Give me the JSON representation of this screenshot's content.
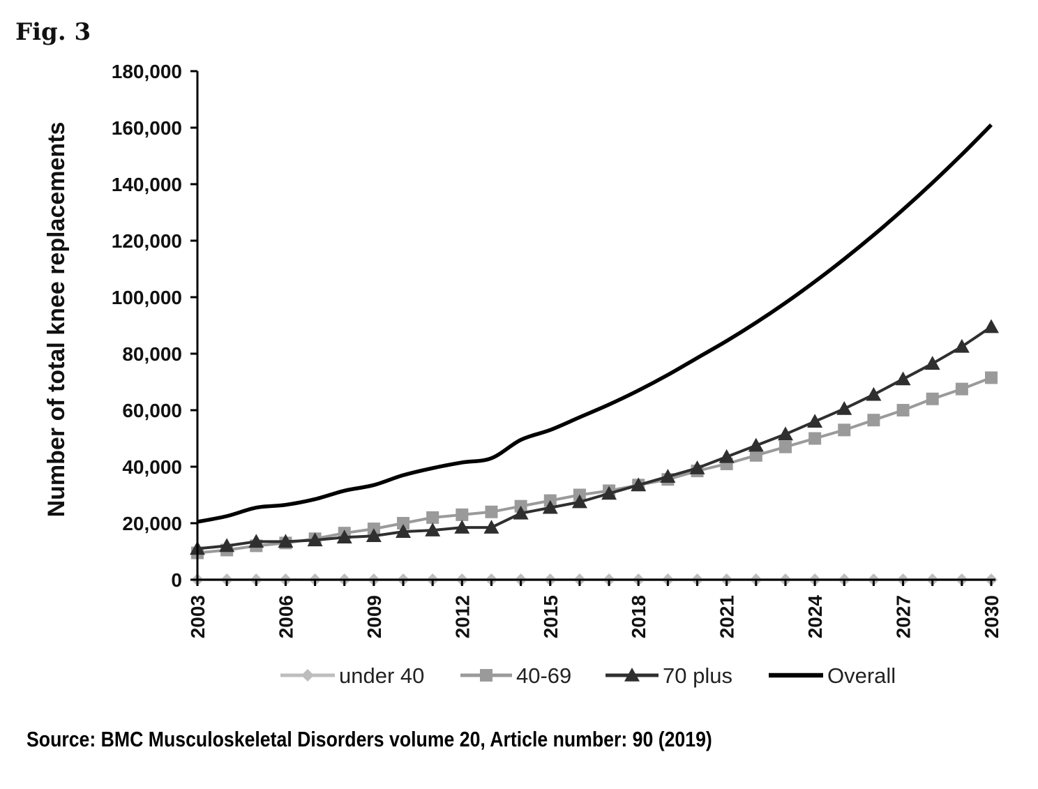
{
  "figure": {
    "label": "Fig. 3",
    "source": "Source: BMC Musculoskeletal Disorders volume 20, Article number: 90 (2019)"
  },
  "colors": {
    "under40": "#bdbdbd",
    "age40_69": "#9a9a9a",
    "plus70": "#2f2f2f",
    "overall": "#000000",
    "axis": "#000000"
  },
  "chart_data": {
    "type": "line",
    "title": "",
    "xlabel": "",
    "ylabel": "Number of total knee replacements",
    "x": [
      2003,
      2004,
      2005,
      2006,
      2007,
      2008,
      2009,
      2010,
      2011,
      2012,
      2013,
      2014,
      2015,
      2016,
      2017,
      2018,
      2019,
      2020,
      2021,
      2022,
      2023,
      2024,
      2025,
      2026,
      2027,
      2028,
      2029,
      2030
    ],
    "xticks": [
      "2003",
      "2006",
      "2009",
      "2012",
      "2015",
      "2018",
      "2021",
      "2024",
      "2027",
      "2030"
    ],
    "yticks": [
      "0",
      "20,000",
      "40,000",
      "60,000",
      "80,000",
      "100,000",
      "120,000",
      "140,000",
      "160,000",
      "180,000"
    ],
    "ylim": [
      0,
      180000
    ],
    "grid": false,
    "legend_position": "bottom",
    "series": [
      {
        "name": "under 40",
        "marker": "diamond",
        "values": [
          0,
          0,
          0,
          0,
          0,
          0,
          0,
          0,
          0,
          0,
          0,
          0,
          0,
          0,
          0,
          0,
          0,
          0,
          0,
          0,
          0,
          0,
          0,
          0,
          0,
          0,
          0,
          0
        ]
      },
      {
        "name": "40-69",
        "marker": "square",
        "values": [
          9500,
          10500,
          12000,
          13000,
          14500,
          16500,
          18000,
          20000,
          22000,
          23000,
          24000,
          26000,
          28000,
          30000,
          31500,
          33500,
          35500,
          38500,
          41000,
          44000,
          47000,
          50000,
          53000,
          56500,
          60000,
          64000,
          67500,
          71500
        ]
      },
      {
        "name": "70 plus",
        "marker": "triangle",
        "values": [
          11000,
          12000,
          13500,
          13500,
          14000,
          15000,
          15500,
          17000,
          17500,
          18500,
          18500,
          23500,
          25500,
          27500,
          30500,
          33500,
          36500,
          39500,
          43500,
          47500,
          51500,
          56000,
          60500,
          65500,
          71000,
          76500,
          82500,
          89500
        ]
      },
      {
        "name": "Overall",
        "marker": "none",
        "values": [
          20500,
          22500,
          25500,
          26500,
          28500,
          31500,
          33500,
          37000,
          39500,
          41500,
          43000,
          49500,
          53000,
          57500,
          62000,
          67000,
          72500,
          78500,
          84500,
          91000,
          98000,
          105500,
          113500,
          122000,
          131000,
          140500,
          150500,
          161000
        ]
      }
    ]
  }
}
